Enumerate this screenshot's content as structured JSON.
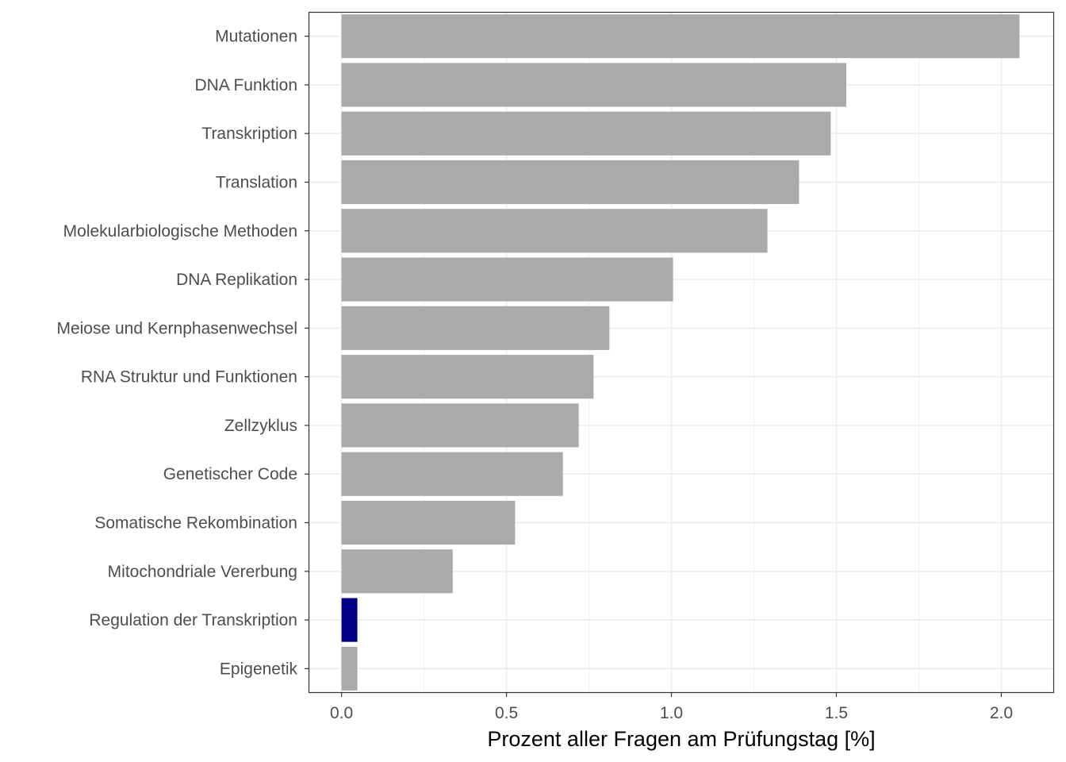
{
  "chart_data": {
    "type": "bar",
    "orientation": "horizontal",
    "title": "",
    "xlabel": "Prozent aller Fragen am Prüfungstag [%]",
    "ylabel": "",
    "xlim": [
      -0.1,
      2.16
    ],
    "xticks": [
      0.0,
      0.5,
      1.0,
      1.5,
      2.0
    ],
    "xtick_labels": [
      "0.0",
      "0.5",
      "1.0",
      "1.5",
      "2.0"
    ],
    "grid": true,
    "categories": [
      "Mutationen",
      "DNA Funktion",
      "Transkription",
      "Translation",
      "Molekularbiologische Methoden",
      "DNA Replikation",
      "Meiose und Kernphasenwechsel",
      "RNA Struktur und Funktionen",
      "Zellzyklus",
      "Genetischer Code",
      "Somatische Rekombination",
      "Mitochondriale Vererbung",
      "Regulation der Transkription",
      "Epigenetik"
    ],
    "values": [
      2.055,
      1.53,
      1.483,
      1.387,
      1.291,
      1.005,
      0.812,
      0.764,
      0.719,
      0.671,
      0.526,
      0.337,
      0.048,
      0.048
    ],
    "highlight": "Regulation der Transkription",
    "colors": {
      "default": "#aaaaaa",
      "highlight": "#00008b",
      "grid": "#ebebeb",
      "border": "#333333"
    }
  }
}
